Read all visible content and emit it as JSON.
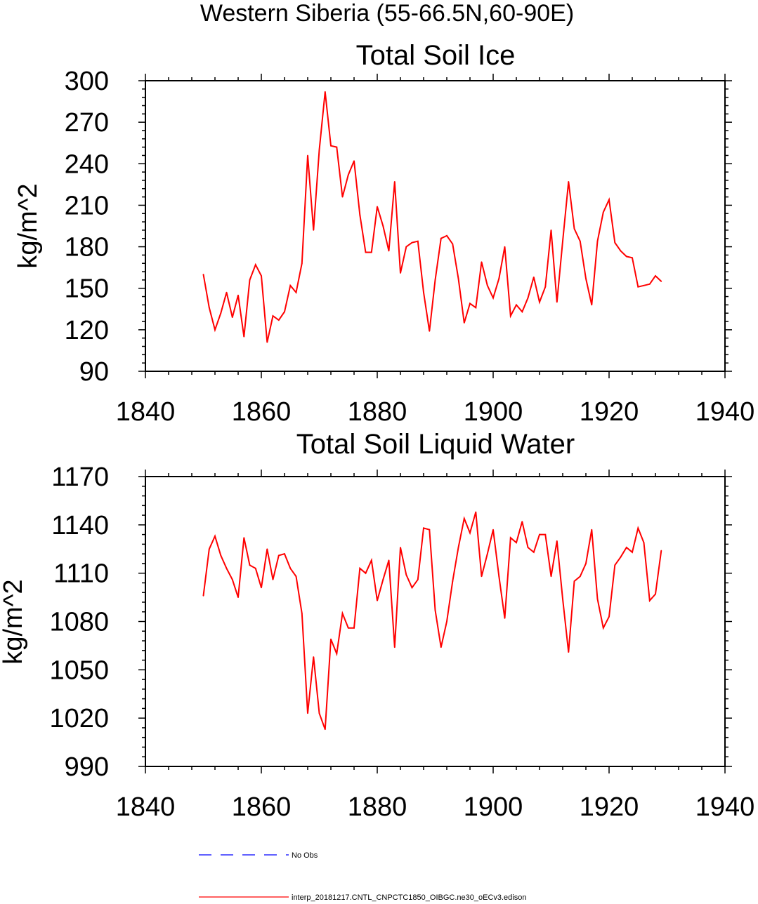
{
  "figure": {
    "suptitle": "Western Siberia (55-66.5N,60-90E)"
  },
  "colors": {
    "model": "#ff0000",
    "obs": "#0000ff",
    "axes": "#000000"
  },
  "chart_data": [
    {
      "type": "line",
      "title": "Total Soil Ice",
      "xlabel": "",
      "ylabel": "kg/m^2",
      "xlim": [
        1840,
        1940
      ],
      "ylim": [
        90,
        300
      ],
      "xticks": [
        1840,
        1860,
        1880,
        1900,
        1920,
        1940
      ],
      "yticks": [
        90,
        120,
        150,
        180,
        210,
        240,
        270,
        300
      ],
      "grid": false,
      "series": [
        {
          "name": "interp_20181217.CNTL_CNPCTC1850_OIBGC.ne30_oECv3.edison",
          "x": [
            1850,
            1851,
            1852,
            1853,
            1854,
            1855,
            1856,
            1857,
            1858,
            1859,
            1860,
            1861,
            1862,
            1863,
            1864,
            1865,
            1866,
            1867,
            1868,
            1869,
            1870,
            1871,
            1872,
            1873,
            1874,
            1875,
            1876,
            1877,
            1878,
            1879,
            1880,
            1881,
            1882,
            1883,
            1884,
            1885,
            1886,
            1887,
            1888,
            1889,
            1890,
            1891,
            1892,
            1893,
            1894,
            1895,
            1896,
            1897,
            1898,
            1899,
            1900,
            1901,
            1902,
            1903,
            1904,
            1905,
            1906,
            1907,
            1908,
            1909,
            1910,
            1911,
            1912,
            1913,
            1914,
            1915,
            1916,
            1917,
            1918,
            1919,
            1920,
            1921,
            1922,
            1923,
            1924,
            1925,
            1926,
            1927,
            1928,
            1929
          ],
          "values": [
            160,
            136,
            120,
            132,
            147,
            129,
            145,
            115,
            156,
            167,
            159,
            111,
            130,
            127,
            133,
            152,
            147,
            168,
            246,
            192,
            250,
            292,
            253,
            252,
            216,
            232,
            242,
            203,
            176,
            176,
            209,
            195,
            177,
            227,
            161,
            180,
            183,
            184,
            147,
            119,
            156,
            186,
            188,
            182,
            157,
            125,
            139,
            136,
            169,
            152,
            143,
            157,
            180,
            130,
            138,
            133,
            143,
            158,
            140,
            151,
            192,
            140,
            184,
            227,
            193,
            184,
            157,
            138,
            184,
            205,
            214,
            183,
            177,
            173,
            172,
            151,
            152,
            153,
            159,
            155
          ]
        }
      ]
    },
    {
      "type": "line",
      "title": "Total Soil Liquid Water",
      "xlabel": "",
      "ylabel": "kg/m^2",
      "xlim": [
        1840,
        1940
      ],
      "ylim": [
        990,
        1170
      ],
      "xticks": [
        1840,
        1860,
        1880,
        1900,
        1920,
        1940
      ],
      "yticks": [
        990,
        1020,
        1050,
        1080,
        1110,
        1140,
        1170
      ],
      "grid": false,
      "series": [
        {
          "name": "interp_20181217.CNTL_CNPCTC1850_OIBGC.ne30_oECv3.edison",
          "x": [
            1850,
            1851,
            1852,
            1853,
            1854,
            1855,
            1856,
            1857,
            1858,
            1859,
            1860,
            1861,
            1862,
            1863,
            1864,
            1865,
            1866,
            1867,
            1868,
            1869,
            1870,
            1871,
            1872,
            1873,
            1874,
            1875,
            1876,
            1877,
            1878,
            1879,
            1880,
            1881,
            1882,
            1883,
            1884,
            1885,
            1886,
            1887,
            1888,
            1889,
            1890,
            1891,
            1892,
            1893,
            1894,
            1895,
            1896,
            1897,
            1898,
            1899,
            1900,
            1901,
            1902,
            1903,
            1904,
            1905,
            1906,
            1907,
            1908,
            1909,
            1910,
            1911,
            1912,
            1913,
            1914,
            1915,
            1916,
            1917,
            1918,
            1919,
            1920,
            1921,
            1922,
            1923,
            1924,
            1925,
            1926,
            1927,
            1928,
            1929
          ],
          "values": [
            1096,
            1125,
            1133,
            1121,
            1113,
            1106,
            1095,
            1132,
            1115,
            1113,
            1101,
            1125,
            1106,
            1121,
            1122,
            1113,
            1108,
            1085,
            1023,
            1058,
            1023,
            1013,
            1069,
            1060,
            1085,
            1076,
            1076,
            1113,
            1110,
            1118,
            1093,
            1106,
            1118,
            1064,
            1126,
            1109,
            1101,
            1106,
            1138,
            1137,
            1087,
            1064,
            1080,
            1105,
            1126,
            1144,
            1135,
            1148,
            1108,
            1122,
            1137,
            1108,
            1082,
            1132,
            1129,
            1142,
            1126,
            1123,
            1134,
            1134,
            1108,
            1130,
            1094,
            1061,
            1105,
            1108,
            1116,
            1137,
            1094,
            1076,
            1083,
            1115,
            1120,
            1126,
            1123,
            1138,
            1129,
            1093,
            1097,
            1124
          ]
        }
      ]
    }
  ],
  "legend": [
    {
      "label": "No Obs",
      "style": "dashed",
      "color": "#0000ff"
    },
    {
      "label": "interp_20181217.CNTL_CNPCTC1850_OIBGC.ne30_oECv3.edison",
      "style": "solid",
      "color": "#ff0000"
    }
  ]
}
